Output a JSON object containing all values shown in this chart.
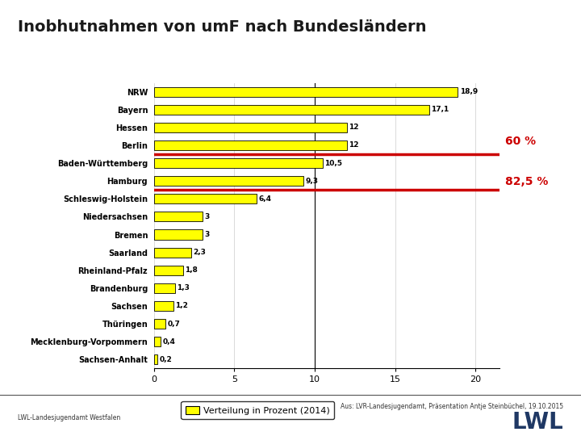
{
  "title": "Inobhutnahmen von umF nach Bundesländern",
  "title_color": "#1a1a1a",
  "categories": [
    "NRW",
    "Bayern",
    "Hessen",
    "Berlin",
    "Baden-Württemberg",
    "Hamburg",
    "Schleswig-Holstein",
    "Niedersachsen",
    "Bremen",
    "Saarland",
    "Rheinland-Pfalz",
    "Brandenburg",
    "Sachsen",
    "Thüringen",
    "Mecklenburg-Vorpommern",
    "Sachsen-Anhalt"
  ],
  "values": [
    18.9,
    17.1,
    12.0,
    12.0,
    10.5,
    9.3,
    6.4,
    3.0,
    3.0,
    2.3,
    1.8,
    1.3,
    1.2,
    0.7,
    0.4,
    0.2
  ],
  "value_labels": [
    "18,9",
    "17,1",
    "12",
    "12",
    "10,5",
    "9,3",
    "6,4",
    "3",
    "3",
    "2,3",
    "1,8",
    "1,3",
    "1,2",
    "0,7",
    "0,4",
    "0,2"
  ],
  "bar_color": "#FFFF00",
  "bar_edge_color": "#000000",
  "bar_edge_width": 0.6,
  "xlim": [
    0,
    21.5
  ],
  "xticks": [
    0,
    5,
    10,
    15,
    20
  ],
  "annotation_60": "60 %",
  "annotation_825": "82,5 %",
  "vertical_line_x": 10,
  "legend_label": "Verteilung in Prozent (2014)",
  "source_text": "Aus: LVR-Landesjugendamt, Präsentation Antje Steinbüchel, 19.10.2015",
  "footer_text": "LWL-Landesjugendamt Westfalen",
  "background_color": "#FFFFFF",
  "red_line_color": "#CC0000",
  "annotation_color": "#CC0000",
  "value_label_color": "#000000",
  "grid_color": "#CCCCCC",
  "lwl_color": "#1F3864"
}
